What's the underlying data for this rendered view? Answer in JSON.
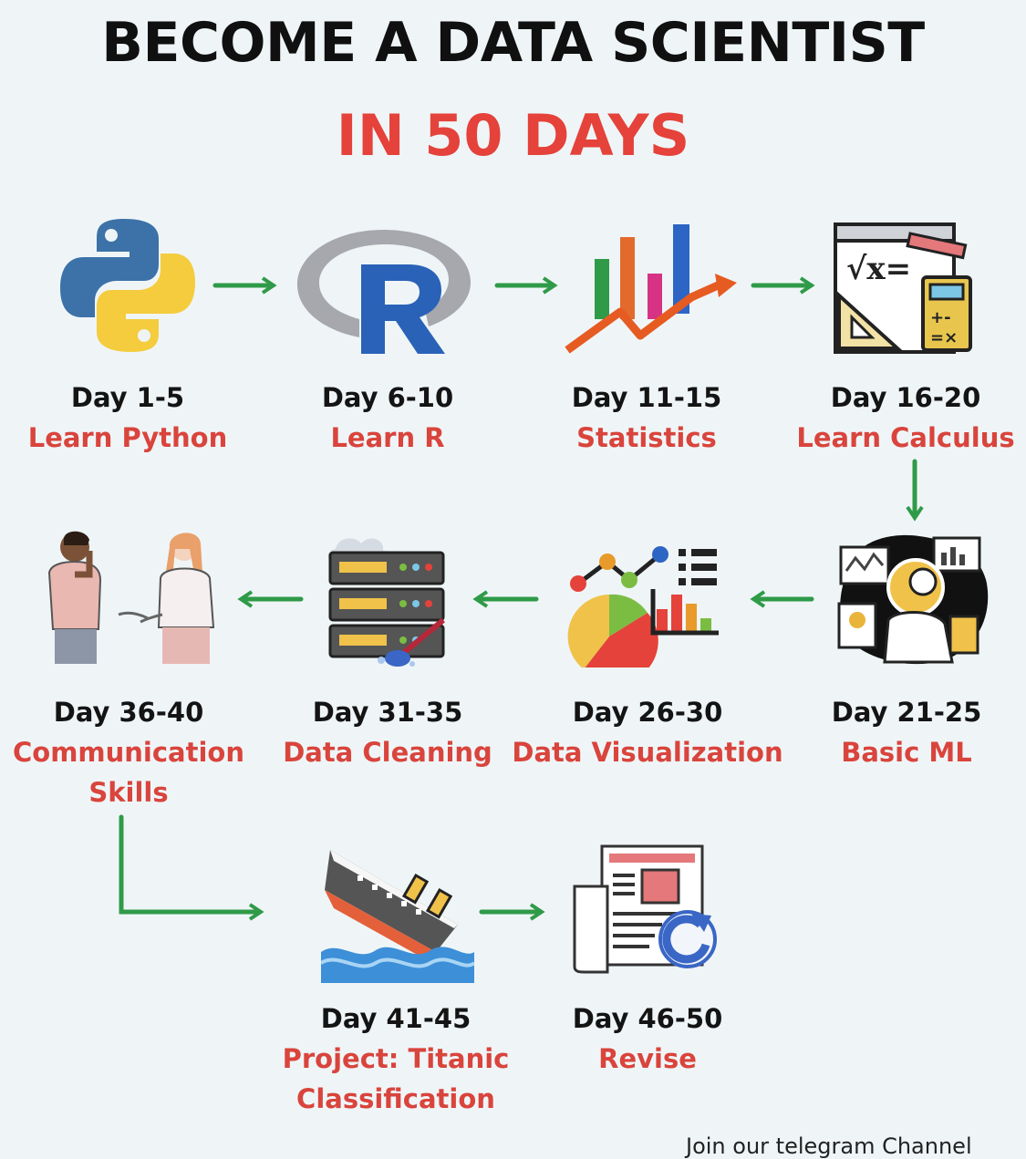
{
  "title": "BECOME A DATA SCIENTIST",
  "subtitle": "IN 50 DAYS",
  "steps": [
    {
      "day": "Day 1-5",
      "topic": "Learn Python",
      "icon": "python-logo-icon"
    },
    {
      "day": "Day 6-10",
      "topic": "Learn R",
      "icon": "r-logo-icon"
    },
    {
      "day": "Day 11-15",
      "topic": "Statistics",
      "icon": "bar-chart-growth-icon"
    },
    {
      "day": "Day 16-20",
      "topic": "Learn Calculus",
      "icon": "calculus-board-icon"
    },
    {
      "day": "Day 21-25",
      "topic": "Basic ML",
      "icon": "robot-ml-icon"
    },
    {
      "day": "Day 26-30",
      "topic": "Data Visualization",
      "icon": "charts-icon"
    },
    {
      "day": "Day 31-35",
      "topic": "Data Cleaning",
      "icon": "server-cleaning-icon"
    },
    {
      "day": "Day 36-40",
      "topic": "Communication\nSkills",
      "icon": "two-people-talking-icon"
    },
    {
      "day": "Day 41-45",
      "topic": "Project: Titanic\nClassification",
      "icon": "sinking-ship-icon"
    },
    {
      "day": "Day 46-50",
      "topic": "Revise",
      "icon": "document-refresh-icon"
    }
  ],
  "footer": "Join our telegram Channel",
  "colors": {
    "accent": "#e4423a",
    "arrow": "#2f9a48",
    "text": "#101010"
  }
}
